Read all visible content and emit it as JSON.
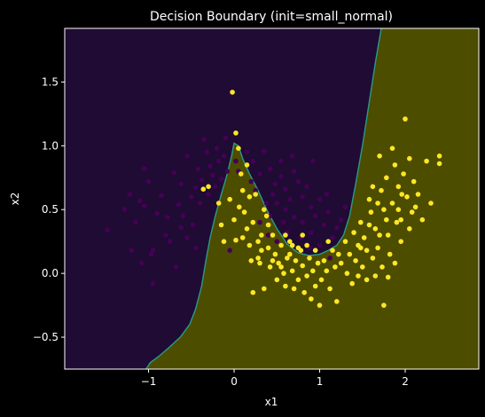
{
  "chart_data": {
    "type": "scatter",
    "title": "Decision Boundary (init=small_normal)",
    "xlabel": "x1",
    "ylabel": "x2",
    "xlim": [
      -1.98,
      2.86
    ],
    "ylim": [
      -0.75,
      1.92
    ],
    "xticks": [
      -1,
      0,
      1,
      2
    ],
    "yticks": [
      -0.5,
      0.0,
      0.5,
      1.0,
      1.5
    ],
    "xtick_labels": [
      "−1",
      "0",
      "1",
      "2"
    ],
    "ytick_labels": [
      "−0.5",
      "0.0",
      "0.5",
      "1.0",
      "1.5"
    ],
    "grid": false,
    "legend": "none",
    "colors": {
      "background": "#000000",
      "region_class0": "#1f0b33",
      "region_class1": "#4d4d00",
      "boundary": "#2a9a8a",
      "class0_point": "#440154",
      "class1_point": "#fde725",
      "axis": "#ffffff"
    },
    "boundary": [
      [
        -1.03,
        -0.75
      ],
      [
        -0.98,
        -0.7
      ],
      [
        -0.88,
        -0.65
      ],
      [
        -0.76,
        -0.58
      ],
      [
        -0.63,
        -0.5
      ],
      [
        -0.52,
        -0.4
      ],
      [
        -0.45,
        -0.28
      ],
      [
        -0.38,
        -0.1
      ],
      [
        -0.33,
        0.1
      ],
      [
        -0.28,
        0.28
      ],
      [
        -0.22,
        0.45
      ],
      [
        -0.15,
        0.62
      ],
      [
        -0.08,
        0.78
      ],
      [
        -0.03,
        0.92
      ],
      [
        0.0,
        1.02
      ],
      [
        0.05,
        1.0
      ],
      [
        0.1,
        0.9
      ],
      [
        0.18,
        0.78
      ],
      [
        0.28,
        0.65
      ],
      [
        0.38,
        0.5
      ],
      [
        0.5,
        0.35
      ],
      [
        0.62,
        0.23
      ],
      [
        0.75,
        0.16
      ],
      [
        0.88,
        0.14
      ],
      [
        1.0,
        0.15
      ],
      [
        1.1,
        0.18
      ],
      [
        1.2,
        0.22
      ],
      [
        1.28,
        0.3
      ],
      [
        1.35,
        0.45
      ],
      [
        1.42,
        0.7
      ],
      [
        1.5,
        1.0
      ],
      [
        1.57,
        1.3
      ],
      [
        1.65,
        1.65
      ],
      [
        1.72,
        1.92
      ]
    ],
    "class0": [
      [
        -1.48,
        0.34
      ],
      [
        -1.05,
        0.53
      ],
      [
        -1.1,
        0.57
      ],
      [
        -1.0,
        0.72
      ],
      [
        -1.05,
        0.82
      ],
      [
        -0.95,
        0.18
      ],
      [
        -0.9,
        0.47
      ],
      [
        -0.85,
        0.61
      ],
      [
        -0.8,
        0.3
      ],
      [
        -0.75,
        0.25
      ],
      [
        -0.7,
        0.79
      ],
      [
        -0.65,
        0.54
      ],
      [
        -0.62,
        0.7
      ],
      [
        -0.6,
        0.45
      ],
      [
        -0.55,
        0.92
      ],
      [
        -0.5,
        0.6
      ],
      [
        -0.48,
        0.38
      ],
      [
        -0.45,
        0.67
      ],
      [
        -0.42,
        0.82
      ],
      [
        -0.4,
        0.55
      ],
      [
        -0.38,
        0.73
      ],
      [
        -0.35,
        1.05
      ],
      [
        -0.32,
        0.95
      ],
      [
        -0.3,
        0.62
      ],
      [
        -0.28,
        0.84
      ],
      [
        -0.25,
        0.77
      ],
      [
        -0.22,
        0.68
      ],
      [
        -0.2,
        0.98
      ],
      [
        -0.18,
        0.88
      ],
      [
        -0.15,
        0.74
      ],
      [
        -0.12,
        0.92
      ],
      [
        -0.1,
        1.06
      ],
      [
        -0.08,
        0.8
      ],
      [
        -1.15,
        0.4
      ],
      [
        -1.2,
        0.18
      ],
      [
        -1.22,
        0.62
      ],
      [
        -1.28,
        0.5
      ],
      [
        -0.97,
        0.15
      ],
      [
        -1.08,
        0.08
      ],
      [
        -0.68,
        0.05
      ],
      [
        -0.95,
        -0.08
      ],
      [
        -0.78,
        0.44
      ],
      [
        -0.62,
        0.36
      ],
      [
        -0.55,
        0.28
      ],
      [
        -0.45,
        0.2
      ],
      [
        0.15,
        0.95
      ],
      [
        0.22,
        0.88
      ],
      [
        0.3,
        0.78
      ],
      [
        0.35,
        0.96
      ],
      [
        0.42,
        0.82
      ],
      [
        0.48,
        0.7
      ],
      [
        0.55,
        0.76
      ],
      [
        0.6,
        0.66
      ],
      [
        0.65,
        0.58
      ],
      [
        0.7,
        0.8
      ],
      [
        0.75,
        0.72
      ],
      [
        0.8,
        0.6
      ],
      [
        0.85,
        0.68
      ],
      [
        0.9,
        0.52
      ],
      [
        0.95,
        0.45
      ],
      [
        1.0,
        0.58
      ],
      [
        1.05,
        0.38
      ],
      [
        1.1,
        0.48
      ],
      [
        0.9,
        0.32
      ],
      [
        0.8,
        0.4
      ],
      [
        0.7,
        0.44
      ],
      [
        0.6,
        0.5
      ],
      [
        0.5,
        0.55
      ],
      [
        0.45,
        0.62
      ],
      [
        1.15,
        0.28
      ],
      [
        1.2,
        0.36
      ],
      [
        0.3,
        0.4
      ],
      [
        0.4,
        0.3
      ],
      [
        0.5,
        0.25
      ],
      [
        1.0,
        0.22
      ],
      [
        0.25,
        0.65
      ],
      [
        0.38,
        0.55
      ],
      [
        0.55,
        0.88
      ],
      [
        0.68,
        0.92
      ],
      [
        0.2,
        0.72
      ],
      [
        1.25,
        0.42
      ],
      [
        0.92,
        0.88
      ],
      [
        1.08,
        0.62
      ],
      [
        0.58,
        0.4
      ],
      [
        0.78,
        0.28
      ],
      [
        0.88,
        0.2
      ],
      [
        1.12,
        0.12
      ],
      [
        1.3,
        0.52
      ],
      [
        0.62,
        0.32
      ],
      [
        0.42,
        0.45
      ],
      [
        -0.05,
        0.18
      ],
      [
        0.05,
        0.8
      ],
      [
        0.02,
        0.88
      ]
    ],
    "class1": [
      [
        -0.02,
        1.42
      ],
      [
        0.02,
        1.1
      ],
      [
        -0.36,
        0.66
      ],
      [
        -0.3,
        0.68
      ],
      [
        -0.18,
        0.55
      ],
      [
        -0.15,
        0.38
      ],
      [
        -0.12,
        0.25
      ],
      [
        -0.05,
        0.58
      ],
      [
        0.0,
        0.42
      ],
      [
        0.02,
        0.26
      ],
      [
        0.05,
        0.98
      ],
      [
        0.08,
        0.78
      ],
      [
        0.1,
        0.65
      ],
      [
        0.12,
        0.48
      ],
      [
        0.15,
        0.35
      ],
      [
        0.18,
        0.22
      ],
      [
        0.2,
        0.1
      ],
      [
        0.22,
        -0.15
      ],
      [
        0.25,
        0.62
      ],
      [
        0.28,
        0.25
      ],
      [
        0.3,
        0.08
      ],
      [
        0.32,
        0.18
      ],
      [
        0.35,
        -0.12
      ],
      [
        0.38,
        0.45
      ],
      [
        0.4,
        0.2
      ],
      [
        0.42,
        0.05
      ],
      [
        0.45,
        0.3
      ],
      [
        0.48,
        0.15
      ],
      [
        0.5,
        -0.05
      ],
      [
        0.52,
        0.08
      ],
      [
        0.55,
        0.22
      ],
      [
        0.58,
        0.0
      ],
      [
        0.6,
        -0.1
      ],
      [
        0.62,
        0.12
      ],
      [
        0.65,
        0.25
      ],
      [
        0.68,
        0.02
      ],
      [
        0.7,
        -0.12
      ],
      [
        0.72,
        0.1
      ],
      [
        0.75,
        -0.05
      ],
      [
        0.78,
        0.18
      ],
      [
        0.8,
        0.06
      ],
      [
        0.82,
        -0.15
      ],
      [
        0.85,
        -0.02
      ],
      [
        0.88,
        0.12
      ],
      [
        0.9,
        -0.2
      ],
      [
        0.92,
        0.02
      ],
      [
        0.95,
        -0.1
      ],
      [
        0.98,
        0.08
      ],
      [
        1.0,
        -0.25
      ],
      [
        1.02,
        -0.05
      ],
      [
        1.05,
        0.1
      ],
      [
        1.08,
        0.02
      ],
      [
        1.12,
        -0.12
      ],
      [
        1.15,
        0.18
      ],
      [
        1.18,
        0.05
      ],
      [
        1.2,
        -0.22
      ],
      [
        1.25,
        0.08
      ],
      [
        1.3,
        0.25
      ],
      [
        1.32,
        0.0
      ],
      [
        1.35,
        0.15
      ],
      [
        1.38,
        -0.08
      ],
      [
        1.4,
        0.32
      ],
      [
        1.42,
        0.1
      ],
      [
        1.45,
        0.22
      ],
      [
        1.48,
        0.4
      ],
      [
        1.5,
        0.05
      ],
      [
        1.52,
        0.28
      ],
      [
        1.55,
        0.18
      ],
      [
        1.58,
        0.58
      ],
      [
        1.6,
        0.48
      ],
      [
        1.62,
        0.12
      ],
      [
        1.65,
        0.35
      ],
      [
        1.68,
        0.2
      ],
      [
        1.7,
        0.92
      ],
      [
        1.72,
        0.65
      ],
      [
        1.75,
        0.5
      ],
      [
        1.78,
        0.75
      ],
      [
        1.8,
        0.3
      ],
      [
        1.82,
        0.15
      ],
      [
        1.85,
        0.55
      ],
      [
        1.88,
        0.85
      ],
      [
        1.9,
        0.4
      ],
      [
        1.92,
        0.68
      ],
      [
        1.95,
        0.25
      ],
      [
        1.98,
        0.78
      ],
      [
        2.0,
        1.21
      ],
      [
        2.02,
        0.6
      ],
      [
        2.05,
        0.9
      ],
      [
        2.08,
        0.48
      ],
      [
        2.1,
        0.72
      ],
      [
        2.15,
        0.62
      ],
      [
        2.2,
        0.42
      ],
      [
        2.25,
        0.88
      ],
      [
        2.3,
        0.55
      ],
      [
        2.4,
        0.86
      ],
      [
        2.4,
        0.92
      ],
      [
        1.73,
        0.05
      ],
      [
        1.8,
        -0.03
      ],
      [
        1.65,
        -0.02
      ],
      [
        1.55,
        -0.05
      ],
      [
        1.75,
        -0.25
      ],
      [
        1.45,
        -0.02
      ],
      [
        1.68,
        0.55
      ],
      [
        1.92,
        0.5
      ],
      [
        1.96,
        0.62
      ],
      [
        2.12,
        0.52
      ],
      [
        1.85,
        0.98
      ],
      [
        1.58,
        0.38
      ],
      [
        1.48,
        0.2
      ],
      [
        1.95,
        0.42
      ],
      [
        1.88,
        0.08
      ],
      [
        1.78,
        0.42
      ],
      [
        1.62,
        0.68
      ],
      [
        1.7,
        0.3
      ],
      [
        2.05,
        0.35
      ],
      [
        0.18,
        0.6
      ],
      [
        0.22,
        0.4
      ],
      [
        0.1,
        0.28
      ],
      [
        0.06,
        0.52
      ],
      [
        0.35,
        0.5
      ],
      [
        0.6,
        0.3
      ],
      [
        0.4,
        0.38
      ],
      [
        0.65,
        0.15
      ],
      [
        0.75,
        0.2
      ],
      [
        0.55,
        0.05
      ],
      [
        0.95,
        0.18
      ],
      [
        1.1,
        0.25
      ],
      [
        1.22,
        0.15
      ],
      [
        0.28,
        0.12
      ],
      [
        0.15,
        0.85
      ],
      [
        0.85,
        0.22
      ],
      [
        0.8,
        0.3
      ],
      [
        0.68,
        0.22
      ],
      [
        0.32,
        0.3
      ],
      [
        0.45,
        0.1
      ]
    ]
  }
}
